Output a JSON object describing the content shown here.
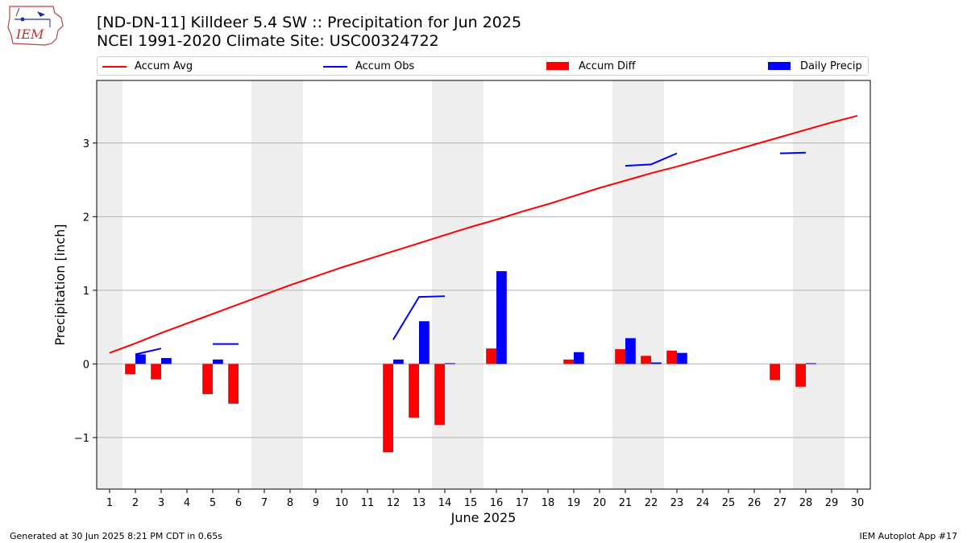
{
  "header": {
    "title_line1": "[ND-DN-11] Killdeer 5.4 SW :: Precipitation for Jun 2025",
    "title_line2": "NCEI 1991-2020 Climate Site: USC00324722"
  },
  "logo": {
    "text": "IEM"
  },
  "footer": {
    "left": "Generated at 30 Jun 2025 8:21 PM CDT in 0.65s",
    "right": "IEM Autoplot App #17"
  },
  "colors": {
    "accum_avg": "#ff0000",
    "accum_obs": "#0000ff",
    "accum_diff": "#ff0000",
    "daily_precip": "#0000ff",
    "weekend_shade": "#eeeeee",
    "grid": "#b0b0b0"
  },
  "chart_data": {
    "type": "bar",
    "xlabel": "June 2025",
    "ylabel": "Precipitation [inch]",
    "x": [
      1,
      2,
      3,
      4,
      5,
      6,
      7,
      8,
      9,
      10,
      11,
      12,
      13,
      14,
      15,
      16,
      17,
      18,
      19,
      20,
      21,
      22,
      23,
      24,
      25,
      26,
      27,
      28,
      29,
      30
    ],
    "xlim": [
      0.5,
      30.5
    ],
    "ylim": [
      -1.7,
      3.85
    ],
    "yticks": [
      -1,
      0,
      1,
      2,
      3
    ],
    "grid": "horizontal",
    "legend_placement": "top",
    "weekend_shading": [
      [
        0.5,
        1.5
      ],
      [
        6.5,
        8.5
      ],
      [
        13.5,
        15.5
      ],
      [
        20.5,
        22.5
      ],
      [
        27.5,
        29.5
      ]
    ],
    "legend": [
      "Accum Avg",
      "Accum Obs",
      "Accum Diff",
      "Daily Precip"
    ],
    "series": [
      {
        "name": "Accum Avg",
        "kind": "line",
        "values": [
          0.15,
          0.28,
          0.42,
          0.55,
          0.68,
          0.81,
          0.94,
          1.07,
          1.19,
          1.31,
          1.42,
          1.53,
          1.64,
          1.75,
          1.86,
          1.96,
          2.07,
          2.17,
          2.28,
          2.39,
          2.49,
          2.59,
          2.68,
          2.78,
          2.88,
          2.98,
          3.08,
          3.18,
          3.28,
          3.37
        ]
      },
      {
        "name": "Accum Obs",
        "kind": "line",
        "values": [
          null,
          0.13,
          0.21,
          null,
          0.27,
          0.27,
          null,
          null,
          null,
          null,
          null,
          0.33,
          0.91,
          0.92,
          null,
          null,
          null,
          null,
          null,
          null,
          2.69,
          2.71,
          2.86,
          null,
          null,
          null,
          2.86,
          2.87,
          null,
          null
        ]
      },
      {
        "name": "Accum Diff",
        "kind": "bar",
        "values": [
          0,
          -0.14,
          -0.21,
          0,
          -0.41,
          -0.54,
          0,
          0,
          0,
          0,
          0,
          -1.2,
          -0.73,
          -0.83,
          0,
          0.21,
          0,
          0,
          0.06,
          0,
          0.2,
          0.11,
          0.18,
          0,
          0,
          0,
          -0.22,
          -0.31,
          0,
          0
        ]
      },
      {
        "name": "Daily Precip",
        "kind": "bar",
        "values": [
          0,
          0.13,
          0.08,
          0,
          0.06,
          0,
          0,
          0,
          0,
          0,
          0,
          0.06,
          0.58,
          0.01,
          0,
          1.26,
          0,
          0,
          0.16,
          0,
          0.35,
          0.02,
          0.15,
          0,
          0,
          0,
          0,
          0.01,
          0,
          0
        ]
      }
    ]
  }
}
